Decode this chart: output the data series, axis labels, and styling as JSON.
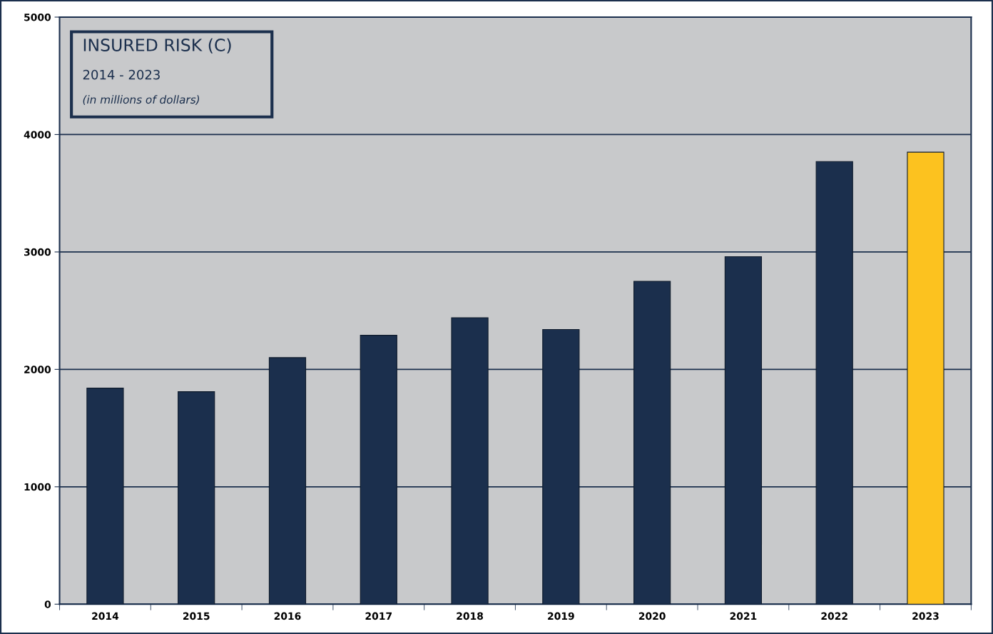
{
  "chart_data": {
    "type": "bar",
    "title": "INSURED RISK (C)",
    "subtitle": "2014 - 2023",
    "annotations": [
      "(in millions of dollars)"
    ],
    "categories": [
      "2014",
      "2015",
      "2016",
      "2017",
      "2018",
      "2019",
      "2020",
      "2021",
      "2022",
      "2023"
    ],
    "values": [
      1840,
      1810,
      2100,
      2290,
      2440,
      2340,
      2750,
      2960,
      3770,
      3850
    ],
    "colors": [
      "#1b2f4d",
      "#1b2f4d",
      "#1b2f4d",
      "#1b2f4d",
      "#1b2f4d",
      "#1b2f4d",
      "#1b2f4d",
      "#1b2f4d",
      "#1b2f4d",
      "#fcc21f"
    ],
    "ylim": [
      0,
      5000
    ],
    "yticks": [
      0,
      1000,
      2000,
      3000,
      4000,
      5000
    ],
    "grid": "y",
    "legend": false
  }
}
